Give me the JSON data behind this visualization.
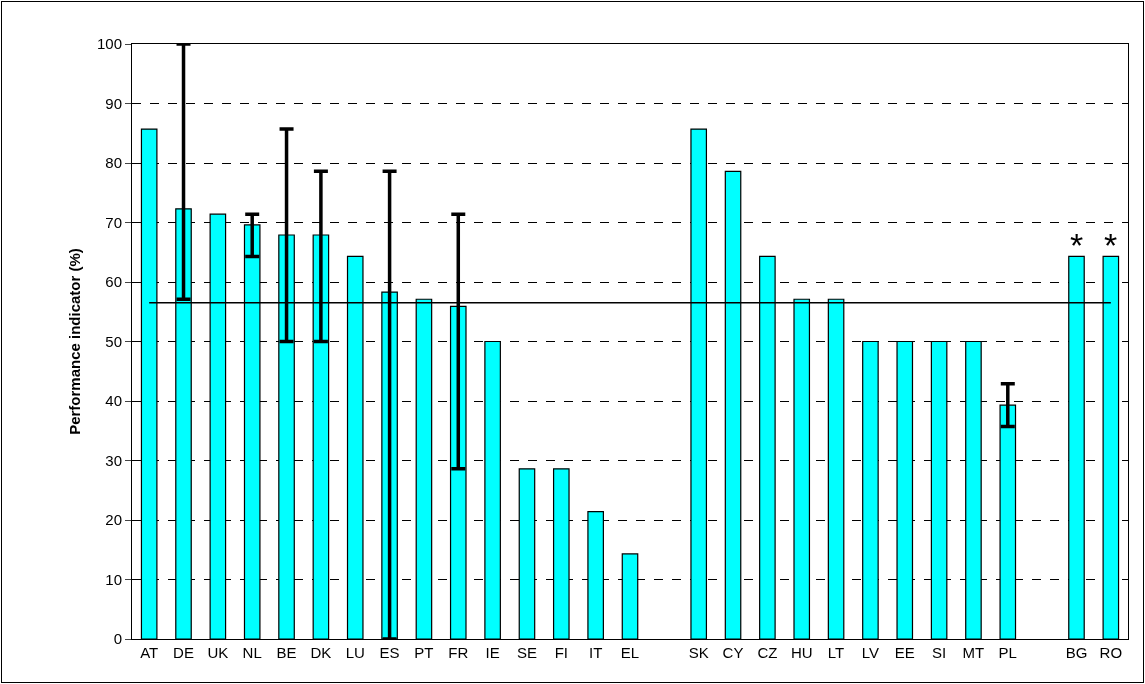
{
  "chart_data": {
    "type": "bar",
    "ylabel": "Performance indicator (%)",
    "categories": [
      "AT",
      "DE",
      "UK",
      "NL",
      "BE",
      "DK",
      "LU",
      "ES",
      "PT",
      "FR",
      "IE",
      "SE",
      "FI",
      "IT",
      "EL",
      null,
      "SK",
      "CY",
      "CZ",
      "HU",
      "LT",
      "LV",
      "EE",
      "SI",
      "MT",
      "PL",
      null,
      "BG",
      "RO"
    ],
    "values": [
      85.7,
      72.3,
      71.4,
      69.6,
      67.9,
      67.9,
      64.3,
      58.3,
      57.1,
      55.9,
      50,
      28.6,
      28.6,
      21.4,
      14.3,
      null,
      85.7,
      78.6,
      64.3,
      57.1,
      57.1,
      50,
      50,
      50,
      50,
      39.3,
      null,
      64.3,
      64.3
    ],
    "errors": [
      null,
      [
        57.1,
        100
      ],
      null,
      [
        64.3,
        71.4
      ],
      [
        50,
        85.7
      ],
      [
        50,
        78.6
      ],
      null,
      [
        0,
        78.6
      ],
      null,
      [
        28.6,
        71.4
      ],
      null,
      null,
      null,
      null,
      null,
      null,
      null,
      null,
      null,
      null,
      null,
      null,
      null,
      null,
      null,
      [
        35.7,
        42.9
      ],
      null,
      null,
      null
    ],
    "color": "#00ffff",
    "ylim": [
      0,
      100
    ],
    "yticks": [
      0,
      10,
      20,
      30,
      40,
      50,
      60,
      70,
      80,
      90,
      100
    ],
    "grid": "y",
    "ref_lines": [
      {
        "axis": "y",
        "value": 56.5,
        "color": "#000000"
      }
    ],
    "annotations": [
      {
        "text": "*",
        "x": "BG",
        "y": 64.3
      },
      {
        "text": "*",
        "x": "RO",
        "y": 64.3
      }
    ]
  }
}
